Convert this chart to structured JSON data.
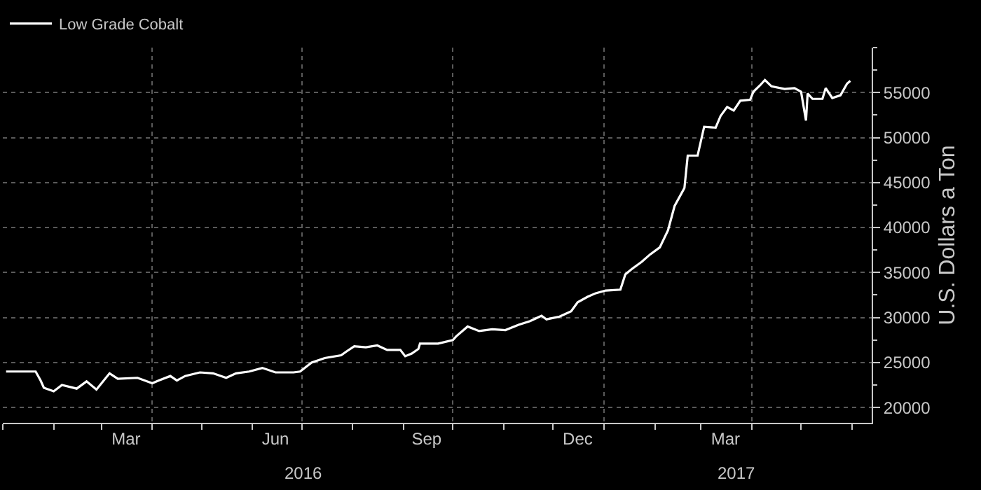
{
  "chart_data": {
    "type": "line",
    "ylabel": "U.S. Dollars a Ton",
    "legend": "top left",
    "grid": true,
    "line_style": "solid",
    "marker": "none",
    "xlim": [
      "2016-01-01",
      "2017-06-13"
    ],
    "xticks": [
      {
        "value": "2016-03-16",
        "label": "Mar"
      },
      {
        "value": "2016-06-15",
        "label": "Jun"
      },
      {
        "value": "2016-09-15",
        "label": "Sep"
      },
      {
        "value": "2016-12-16",
        "label": "Dec"
      },
      {
        "value": "2017-03-16",
        "label": "Mar"
      }
    ],
    "ylim": [
      18300,
      60000
    ],
    "yticks": [
      20000,
      25000,
      30000,
      35000,
      40000,
      45000,
      50000,
      55000
    ],
    "annotations": [
      "2016",
      "2017"
    ],
    "series": [
      {
        "name": "Low Grade Cobalt",
        "color": "#ffffff",
        "x": [
          "2016-01-03",
          "2016-01-21",
          "2016-01-24",
          "2016-01-26",
          "2016-02-01",
          "2016-02-06",
          "2016-02-15",
          "2016-02-21",
          "2016-02-27",
          "2016-03-06",
          "2016-03-11",
          "2016-03-23",
          "2016-04-01",
          "2016-04-05",
          "2016-04-12",
          "2016-04-16",
          "2016-04-21",
          "2016-04-30",
          "2016-05-08",
          "2016-05-16",
          "2016-05-22",
          "2016-05-30",
          "2016-06-07",
          "2016-06-15",
          "2016-06-26",
          "2016-06-30",
          "2016-07-07",
          "2016-07-15",
          "2016-07-25",
          "2016-07-28",
          "2016-08-02",
          "2016-08-09",
          "2016-08-16",
          "2016-08-22",
          "2016-08-30",
          "2016-09-02",
          "2016-09-06",
          "2016-09-10",
          "2016-09-11",
          "2016-09-22",
          "2016-10-01",
          "2016-10-03",
          "2016-10-10",
          "2016-10-17",
          "2016-10-25",
          "2016-11-02",
          "2016-11-10",
          "2016-11-17",
          "2016-11-24",
          "2016-11-27",
          "2016-12-05",
          "2016-12-12",
          "2016-12-16",
          "2016-12-22",
          "2016-12-27",
          "2017-01-02",
          "2017-01-11",
          "2017-01-14",
          "2017-01-18",
          "2017-01-24",
          "2017-01-29",
          "2017-02-04",
          "2017-02-09",
          "2017-02-13",
          "2017-02-19",
          "2017-02-21",
          "2017-02-27",
          "2017-03-03",
          "2017-03-10",
          "2017-03-13",
          "2017-03-17",
          "2017-03-21",
          "2017-03-25",
          "2017-03-31",
          "2017-04-02",
          "2017-04-06",
          "2017-04-09",
          "2017-04-13",
          "2017-04-21",
          "2017-04-27",
          "2017-05-01",
          "2017-05-04",
          "2017-05-05",
          "2017-05-08",
          "2017-05-14",
          "2017-05-16",
          "2017-05-20",
          "2017-05-25",
          "2017-05-29",
          "2017-05-31"
        ],
        "values": [
          24000,
          24000,
          23000,
          22200,
          21800,
          22500,
          22100,
          22900,
          22000,
          23800,
          23200,
          23300,
          22700,
          23000,
          23500,
          23000,
          23500,
          23900,
          23800,
          23300,
          23800,
          24000,
          24400,
          23900,
          23900,
          24000,
          25000,
          25500,
          25800,
          26200,
          26800,
          26700,
          26900,
          26400,
          26400,
          25700,
          26000,
          26500,
          27100,
          27100,
          27500,
          27900,
          29000,
          28500,
          28700,
          28600,
          29200,
          29600,
          30200,
          29800,
          30100,
          30700,
          31700,
          32300,
          32700,
          33000,
          33100,
          34800,
          35400,
          36200,
          37000,
          37800,
          39700,
          42400,
          44400,
          48000,
          48000,
          51200,
          51100,
          52400,
          53400,
          53000,
          54100,
          54200,
          55100,
          55800,
          56400,
          55700,
          55400,
          55500,
          55100,
          51900,
          54900,
          54300,
          54300,
          55500,
          54400,
          54700,
          56000,
          56300
        ]
      }
    ]
  }
}
